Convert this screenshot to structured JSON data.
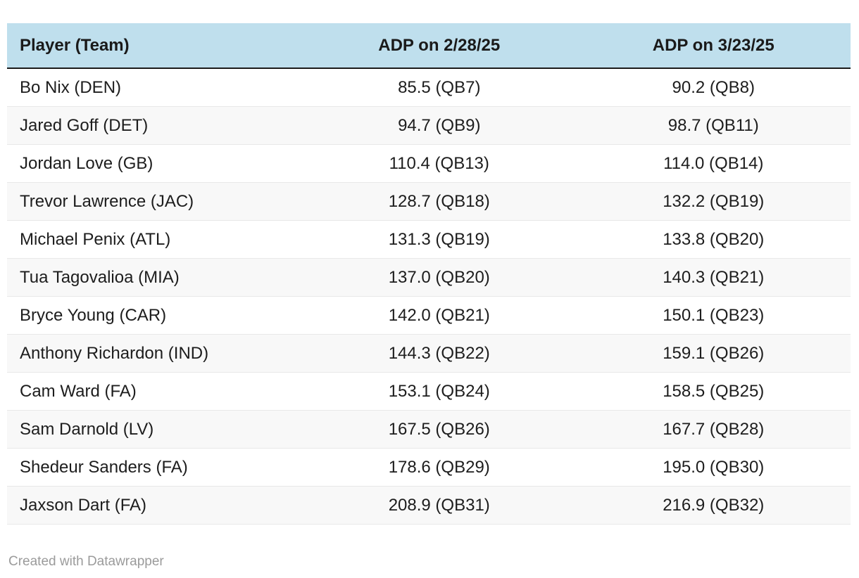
{
  "chart_data": {
    "type": "table",
    "columns": [
      "Player (Team)",
      "ADP on 2/28/25",
      "ADP on 3/23/25"
    ],
    "rows": [
      [
        "Bo Nix (DEN)",
        "85.5 (QB7)",
        "90.2 (QB8)"
      ],
      [
        "Jared Goff (DET)",
        "94.7 (QB9)",
        "98.7 (QB11)"
      ],
      [
        "Jordan Love (GB)",
        "110.4 (QB13)",
        "114.0 (QB14)"
      ],
      [
        "Trevor Lawrence (JAC)",
        "128.7 (QB18)",
        "132.2 (QB19)"
      ],
      [
        "Michael Penix (ATL)",
        "131.3 (QB19)",
        "133.8 (QB20)"
      ],
      [
        "Tua Tagovalioa (MIA)",
        "137.0 (QB20)",
        "140.3 (QB21)"
      ],
      [
        "Bryce Young (CAR)",
        "142.0 (QB21)",
        "150.1 (QB23)"
      ],
      [
        "Anthony Richardon (IND)",
        "144.3 (QB22)",
        "159.1 (QB26)"
      ],
      [
        "Cam Ward (FA)",
        "153.1 (QB24)",
        "158.5 (QB25)"
      ],
      [
        "Sam Darnold (LV)",
        "167.5 (QB26)",
        "167.7 (QB28)"
      ],
      [
        "Shedeur Sanders (FA)",
        "178.6 (QB29)",
        "195.0 (QB30)"
      ],
      [
        "Jaxson Dart (FA)",
        "208.9 (QB31)",
        "216.9 (QB32)"
      ]
    ],
    "layout_hints": {
      "first_column_align": "left",
      "value_columns_align": "center",
      "zebra_striping": "even-rows"
    }
  },
  "footer": {
    "credit": "Created with Datawrapper"
  },
  "colors": {
    "header_bg": "#bfdfed",
    "header_text": "#1a1a1a",
    "header_border": "#1a1a1a",
    "body_text": "#1d1d1d",
    "stripe_bg": "#f8f8f8",
    "row_border": "#e8e8e8",
    "footer_text": "#9b9b9b"
  }
}
